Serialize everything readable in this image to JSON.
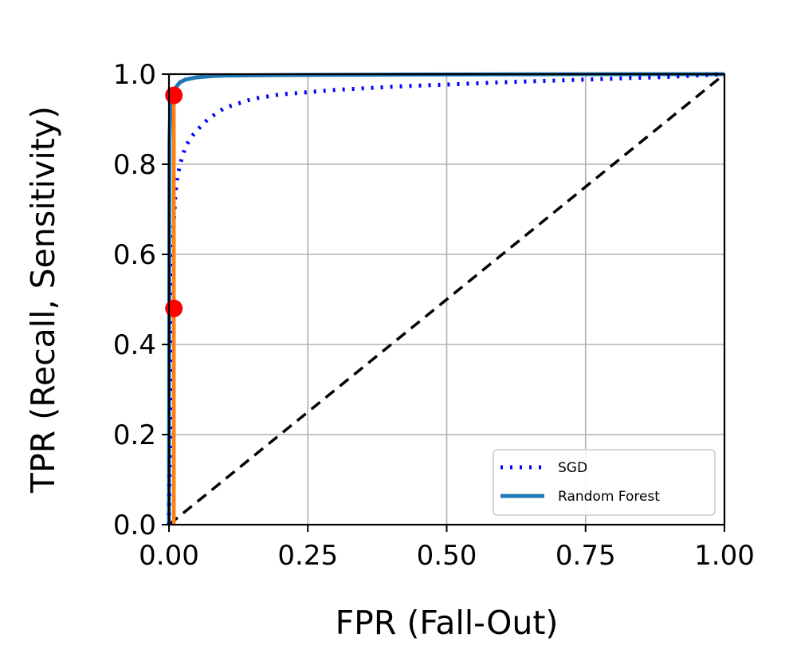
{
  "chart_data": {
    "type": "line",
    "title": "",
    "xlabel": "FPR (Fall-Out)",
    "ylabel": "TPR (Recall, Sensitivity)",
    "xlim": [
      0.0,
      1.0
    ],
    "ylim": [
      0.0,
      1.0
    ],
    "xticks": [
      "0.00",
      "0.25",
      "0.50",
      "0.75",
      "1.00"
    ],
    "yticks": [
      "0.0",
      "0.2",
      "0.4",
      "0.6",
      "0.8",
      "1.0"
    ],
    "grid": true,
    "legend_position": "lower right",
    "series": [
      {
        "name": "SGD",
        "color": "#0000ff",
        "style": "dotted",
        "x": [
          0.0,
          0.005,
          0.006,
          0.007,
          0.008,
          0.01,
          0.012,
          0.015,
          0.02,
          0.025,
          0.03,
          0.04,
          0.05,
          0.07,
          0.1,
          0.15,
          0.2,
          0.3,
          0.4,
          0.5,
          0.6,
          0.7,
          0.8,
          0.9,
          1.0
        ],
        "y": [
          0.0,
          0.48,
          0.55,
          0.6,
          0.65,
          0.7,
          0.74,
          0.77,
          0.8,
          0.82,
          0.84,
          0.86,
          0.875,
          0.9,
          0.925,
          0.945,
          0.955,
          0.965,
          0.972,
          0.977,
          0.982,
          0.986,
          0.99,
          0.994,
          1.0
        ]
      },
      {
        "name": "Random Forest",
        "color": "#1f77b4",
        "style": "solid",
        "x": [
          0.0,
          0.001,
          0.002,
          0.004,
          0.006,
          0.01,
          0.015,
          0.02,
          0.03,
          0.05,
          0.08,
          0.1,
          0.2,
          0.4,
          0.6,
          0.8,
          1.0
        ],
        "y": [
          0.0,
          0.85,
          0.9,
          0.93,
          0.95,
          0.965,
          0.975,
          0.982,
          0.988,
          0.993,
          0.996,
          0.997,
          0.998,
          0.999,
          0.9995,
          1.0,
          1.0
        ]
      },
      {
        "name": "",
        "color": "#ff7f0e",
        "style": "solid",
        "x": [
          0.0089,
          0.0089
        ],
        "y": [
          0.0,
          0.95
        ]
      },
      {
        "name": "",
        "color": "#000000",
        "style": "dashed",
        "x": [
          0.0,
          1.0
        ],
        "y": [
          0.0,
          1.0
        ]
      }
    ],
    "points": [
      {
        "x": 0.0089,
        "y": 0.953,
        "color": "#ff0000"
      },
      {
        "x": 0.0089,
        "y": 0.48,
        "color": "#ff0000"
      }
    ],
    "legend": [
      {
        "label": "SGD",
        "color": "#0000ff",
        "style": "dotted"
      },
      {
        "label": "Random Forest",
        "color": "#1f77b4",
        "style": "solid"
      }
    ]
  }
}
